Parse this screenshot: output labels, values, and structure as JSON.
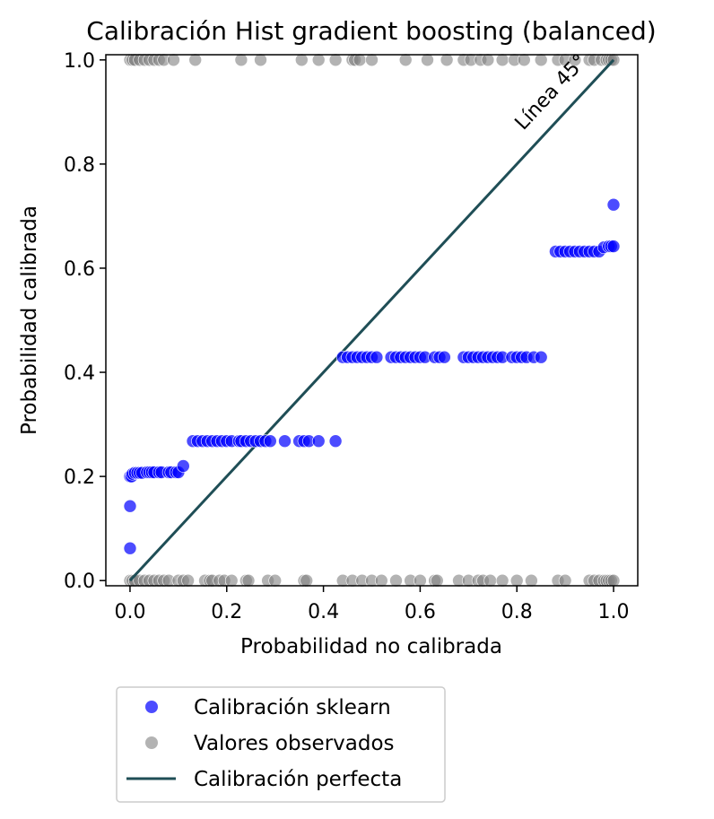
{
  "chart_data": {
    "type": "scatter",
    "title": "Calibración Hist gradient boosting (balanced)",
    "xlabel": "Probabilidad no calibrada",
    "ylabel": "Probabilidad calibrada",
    "xlim": [
      -0.05,
      1.05
    ],
    "ylim": [
      -0.01,
      1.01
    ],
    "xticks": [
      0.0,
      0.2,
      0.4,
      0.6,
      0.8,
      1.0
    ],
    "yticks": [
      0.0,
      0.2,
      0.4,
      0.6,
      0.8,
      1.0
    ],
    "tick_labels": [
      "0.0",
      "0.2",
      "0.4",
      "0.6",
      "0.8",
      "1.0"
    ],
    "grid": false,
    "legend_position": "below-left",
    "annotation": {
      "text": "Línea 45°",
      "x": 0.88,
      "y": 0.93,
      "color": "#2b5560"
    },
    "reference_line": {
      "name": "Calibración perfecta",
      "x": [
        0.0,
        1.0
      ],
      "y": [
        0.0,
        1.0
      ],
      "color": "#1f4e56"
    },
    "series": [
      {
        "name": "Calibración sklearn",
        "color": "#0000ff",
        "opacity": 0.7,
        "points": [
          [
            0.0,
            0.062
          ],
          [
            0.0,
            0.143
          ],
          [
            0.0,
            0.2
          ],
          [
            0.003,
            0.2
          ],
          [
            0.005,
            0.205
          ],
          [
            0.01,
            0.207
          ],
          [
            0.015,
            0.207
          ],
          [
            0.02,
            0.207
          ],
          [
            0.025,
            0.207
          ],
          [
            0.035,
            0.208
          ],
          [
            0.04,
            0.208
          ],
          [
            0.045,
            0.208
          ],
          [
            0.05,
            0.208
          ],
          [
            0.06,
            0.208
          ],
          [
            0.065,
            0.208
          ],
          [
            0.08,
            0.208
          ],
          [
            0.085,
            0.208
          ],
          [
            0.095,
            0.208
          ],
          [
            0.1,
            0.208
          ],
          [
            0.11,
            0.22
          ],
          [
            0.13,
            0.268
          ],
          [
            0.14,
            0.268
          ],
          [
            0.15,
            0.268
          ],
          [
            0.16,
            0.268
          ],
          [
            0.17,
            0.268
          ],
          [
            0.18,
            0.268
          ],
          [
            0.19,
            0.268
          ],
          [
            0.2,
            0.268
          ],
          [
            0.21,
            0.268
          ],
          [
            0.225,
            0.268
          ],
          [
            0.23,
            0.268
          ],
          [
            0.24,
            0.268
          ],
          [
            0.25,
            0.268
          ],
          [
            0.26,
            0.268
          ],
          [
            0.27,
            0.268
          ],
          [
            0.28,
            0.268
          ],
          [
            0.29,
            0.268
          ],
          [
            0.32,
            0.268
          ],
          [
            0.35,
            0.268
          ],
          [
            0.36,
            0.268
          ],
          [
            0.37,
            0.268
          ],
          [
            0.39,
            0.268
          ],
          [
            0.425,
            0.268
          ],
          [
            0.44,
            0.429
          ],
          [
            0.45,
            0.429
          ],
          [
            0.46,
            0.429
          ],
          [
            0.47,
            0.429
          ],
          [
            0.48,
            0.429
          ],
          [
            0.49,
            0.429
          ],
          [
            0.5,
            0.429
          ],
          [
            0.51,
            0.429
          ],
          [
            0.54,
            0.429
          ],
          [
            0.55,
            0.429
          ],
          [
            0.56,
            0.429
          ],
          [
            0.57,
            0.429
          ],
          [
            0.58,
            0.429
          ],
          [
            0.59,
            0.429
          ],
          [
            0.6,
            0.429
          ],
          [
            0.61,
            0.429
          ],
          [
            0.63,
            0.429
          ],
          [
            0.64,
            0.429
          ],
          [
            0.65,
            0.429
          ],
          [
            0.69,
            0.429
          ],
          [
            0.7,
            0.429
          ],
          [
            0.71,
            0.429
          ],
          [
            0.72,
            0.429
          ],
          [
            0.73,
            0.429
          ],
          [
            0.74,
            0.429
          ],
          [
            0.75,
            0.429
          ],
          [
            0.76,
            0.429
          ],
          [
            0.77,
            0.429
          ],
          [
            0.79,
            0.429
          ],
          [
            0.8,
            0.429
          ],
          [
            0.81,
            0.429
          ],
          [
            0.82,
            0.429
          ],
          [
            0.835,
            0.429
          ],
          [
            0.85,
            0.429
          ],
          [
            0.88,
            0.632
          ],
          [
            0.89,
            0.632
          ],
          [
            0.9,
            0.632
          ],
          [
            0.91,
            0.632
          ],
          [
            0.92,
            0.632
          ],
          [
            0.93,
            0.632
          ],
          [
            0.94,
            0.632
          ],
          [
            0.95,
            0.632
          ],
          [
            0.96,
            0.632
          ],
          [
            0.97,
            0.632
          ],
          [
            0.98,
            0.64
          ],
          [
            0.99,
            0.642
          ],
          [
            0.995,
            0.642
          ],
          [
            1.0,
            0.642
          ],
          [
            1.0,
            0.722
          ]
        ]
      },
      {
        "name": "Valores observados",
        "color": "#808080",
        "opacity": 0.6,
        "points": [
          [
            0.0,
            1
          ],
          [
            0.005,
            1
          ],
          [
            0.01,
            1
          ],
          [
            0.02,
            1
          ],
          [
            0.03,
            1
          ],
          [
            0.04,
            1
          ],
          [
            0.05,
            1
          ],
          [
            0.06,
            1
          ],
          [
            0.07,
            1
          ],
          [
            0.09,
            1
          ],
          [
            0.135,
            1
          ],
          [
            0.23,
            1
          ],
          [
            0.27,
            1
          ],
          [
            0.355,
            1
          ],
          [
            0.39,
            1
          ],
          [
            0.425,
            1
          ],
          [
            0.46,
            1
          ],
          [
            0.465,
            1
          ],
          [
            0.475,
            1
          ],
          [
            0.5,
            1
          ],
          [
            0.57,
            1
          ],
          [
            0.615,
            1
          ],
          [
            0.655,
            1
          ],
          [
            0.69,
            1
          ],
          [
            0.705,
            1
          ],
          [
            0.725,
            1
          ],
          [
            0.74,
            1
          ],
          [
            0.77,
            1
          ],
          [
            0.795,
            1
          ],
          [
            0.815,
            1
          ],
          [
            0.85,
            1
          ],
          [
            0.885,
            1
          ],
          [
            0.9,
            1
          ],
          [
            0.92,
            1
          ],
          [
            0.95,
            1
          ],
          [
            0.96,
            1
          ],
          [
            0.975,
            1
          ],
          [
            0.985,
            1
          ],
          [
            0.99,
            1
          ],
          [
            0.995,
            1
          ],
          [
            1.0,
            1
          ],
          [
            0.0,
            0
          ],
          [
            0.005,
            0
          ],
          [
            0.01,
            0
          ],
          [
            0.02,
            0
          ],
          [
            0.03,
            0
          ],
          [
            0.04,
            0
          ],
          [
            0.05,
            0
          ],
          [
            0.06,
            0
          ],
          [
            0.07,
            0
          ],
          [
            0.08,
            0
          ],
          [
            0.1,
            0
          ],
          [
            0.11,
            0
          ],
          [
            0.12,
            0
          ],
          [
            0.155,
            0
          ],
          [
            0.165,
            0
          ],
          [
            0.17,
            0
          ],
          [
            0.185,
            0
          ],
          [
            0.195,
            0
          ],
          [
            0.21,
            0
          ],
          [
            0.24,
            0
          ],
          [
            0.245,
            0
          ],
          [
            0.285,
            0
          ],
          [
            0.3,
            0
          ],
          [
            0.36,
            0
          ],
          [
            0.365,
            0
          ],
          [
            0.44,
            0
          ],
          [
            0.46,
            0
          ],
          [
            0.48,
            0
          ],
          [
            0.5,
            0
          ],
          [
            0.52,
            0
          ],
          [
            0.55,
            0
          ],
          [
            0.58,
            0
          ],
          [
            0.6,
            0
          ],
          [
            0.63,
            0
          ],
          [
            0.635,
            0
          ],
          [
            0.68,
            0
          ],
          [
            0.7,
            0
          ],
          [
            0.72,
            0
          ],
          [
            0.73,
            0
          ],
          [
            0.745,
            0
          ],
          [
            0.77,
            0
          ],
          [
            0.8,
            0
          ],
          [
            0.83,
            0
          ],
          [
            0.885,
            0
          ],
          [
            0.9,
            0
          ],
          [
            0.95,
            0
          ],
          [
            0.96,
            0
          ],
          [
            0.97,
            0
          ],
          [
            0.98,
            0
          ],
          [
            0.985,
            0
          ],
          [
            0.99,
            0
          ],
          [
            0.995,
            0
          ],
          [
            1.0,
            0
          ]
        ]
      }
    ]
  }
}
